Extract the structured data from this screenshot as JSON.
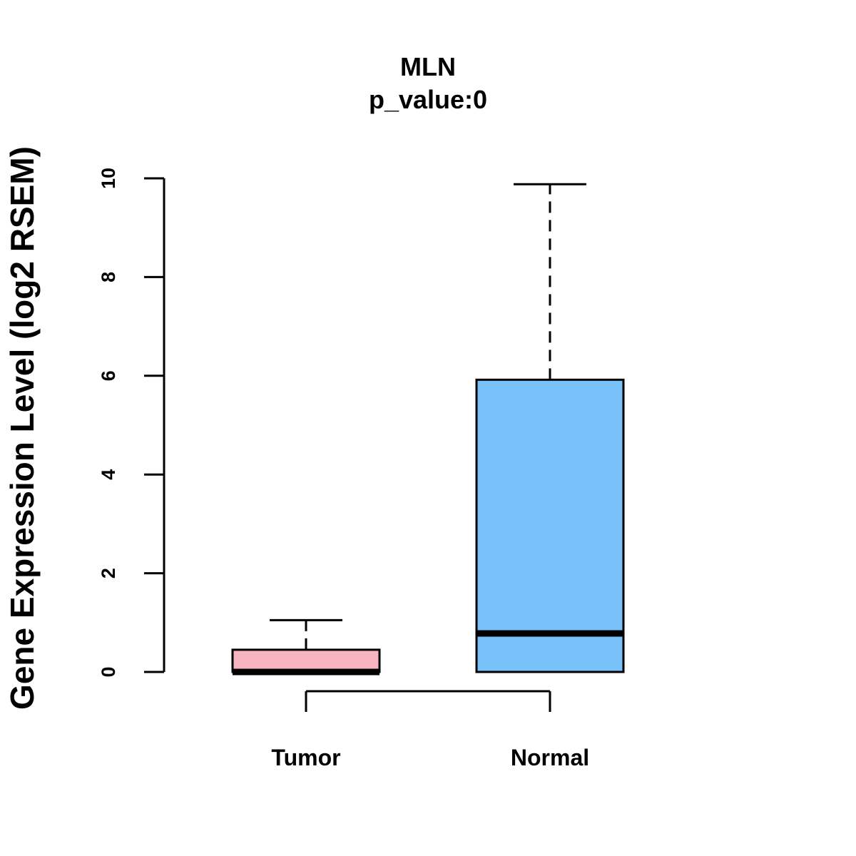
{
  "chart_data": {
    "type": "boxplot",
    "title": "MLN",
    "subtitle": "p_value:0",
    "xlabel": "",
    "ylabel": "Gene Expression Level (log2 RSEM)",
    "ylim": [
      0,
      10
    ],
    "yticks": [
      "0",
      "2",
      "4",
      "6",
      "8",
      "10"
    ],
    "categories": [
      "Tumor",
      "Normal"
    ],
    "series": [
      {
        "name": "Tumor",
        "min": 0,
        "q1": 0,
        "median": 0,
        "q3": 0.45,
        "max": 1.05,
        "color": "#F8B3C1"
      },
      {
        "name": "Normal",
        "min": 0,
        "q1": 0,
        "median": 0.78,
        "q3": 5.92,
        "max": 9.88,
        "color": "#78C1F8"
      }
    ],
    "comparison_bracket": [
      "Tumor",
      "Normal"
    ],
    "grid": false
  }
}
